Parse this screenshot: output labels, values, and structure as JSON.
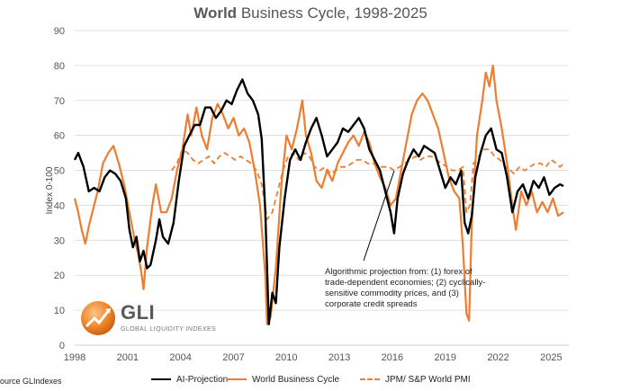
{
  "title_bold": "World",
  "title_rest": "Business Cycle, 1998-2025",
  "source_label": "ource GLIndexes",
  "annotation": "Algorithmic projection from: (1) forex of trade-dependent economies; (2) cyclically-sensitive commodity prices, and (3) corporate credit spreads",
  "logo": {
    "name": "GLI",
    "subtitle": "GLOBAL LIQUIDITY INDEXES"
  },
  "colors": {
    "ai": "#000000",
    "wbc": "#ed7d31",
    "pmi": "#ed7d31",
    "grid": "#d9d9d9"
  },
  "chart_data": {
    "type": "line",
    "ylabel": "Index 0-100",
    "ylim": [
      0,
      90
    ],
    "yticks": [
      0,
      10,
      20,
      30,
      40,
      50,
      60,
      70,
      80,
      90
    ],
    "xlim": [
      1998,
      2026
    ],
    "xticks": [
      1998,
      2001,
      2004,
      2007,
      2010,
      2013,
      2016,
      2019,
      2022,
      2025
    ],
    "grid": "horizontal",
    "legend_position": "bottom",
    "series": [
      {
        "name": "AI-Projection",
        "style": "solid-black",
        "points": [
          [
            1998.0,
            53
          ],
          [
            1998.2,
            55
          ],
          [
            1998.5,
            51
          ],
          [
            1998.8,
            44
          ],
          [
            1999.1,
            45
          ],
          [
            1999.4,
            44
          ],
          [
            1999.7,
            48
          ],
          [
            2000.0,
            50
          ],
          [
            2000.3,
            49
          ],
          [
            2000.6,
            47
          ],
          [
            2000.9,
            42
          ],
          [
            2001.1,
            33
          ],
          [
            2001.3,
            28
          ],
          [
            2001.5,
            31
          ],
          [
            2001.7,
            24
          ],
          [
            2001.9,
            27
          ],
          [
            2002.1,
            22
          ],
          [
            2002.3,
            23
          ],
          [
            2002.6,
            30
          ],
          [
            2002.8,
            36
          ],
          [
            2003.0,
            31
          ],
          [
            2003.3,
            29
          ],
          [
            2003.6,
            35
          ],
          [
            2003.9,
            47
          ],
          [
            2004.2,
            57
          ],
          [
            2004.5,
            60
          ],
          [
            2004.8,
            63
          ],
          [
            2005.1,
            63
          ],
          [
            2005.4,
            68
          ],
          [
            2005.7,
            68
          ],
          [
            2006.0,
            65
          ],
          [
            2006.3,
            67
          ],
          [
            2006.6,
            70
          ],
          [
            2006.9,
            69
          ],
          [
            2007.2,
            73
          ],
          [
            2007.5,
            76
          ],
          [
            2007.8,
            72
          ],
          [
            2008.1,
            70
          ],
          [
            2008.4,
            66
          ],
          [
            2008.6,
            59
          ],
          [
            2008.8,
            38
          ],
          [
            2009.0,
            6
          ],
          [
            2009.2,
            15
          ],
          [
            2009.4,
            12
          ],
          [
            2009.6,
            28
          ],
          [
            2009.9,
            42
          ],
          [
            2010.2,
            53
          ],
          [
            2010.5,
            56
          ],
          [
            2010.8,
            53
          ],
          [
            2011.1,
            58
          ],
          [
            2011.4,
            62
          ],
          [
            2011.7,
            65
          ],
          [
            2012.0,
            60
          ],
          [
            2012.3,
            54
          ],
          [
            2012.6,
            56
          ],
          [
            2012.9,
            58
          ],
          [
            2013.2,
            62
          ],
          [
            2013.5,
            61
          ],
          [
            2013.8,
            63
          ],
          [
            2014.1,
            65
          ],
          [
            2014.4,
            62
          ],
          [
            2014.7,
            56
          ],
          [
            2015.0,
            53
          ],
          [
            2015.3,
            50
          ],
          [
            2015.6,
            44
          ],
          [
            2015.9,
            38
          ],
          [
            2016.1,
            32
          ],
          [
            2016.3,
            42
          ],
          [
            2016.6,
            49
          ],
          [
            2016.9,
            53
          ],
          [
            2017.2,
            56
          ],
          [
            2017.5,
            54
          ],
          [
            2017.8,
            57
          ],
          [
            2018.1,
            56
          ],
          [
            2018.4,
            55
          ],
          [
            2018.7,
            50
          ],
          [
            2019.0,
            45
          ],
          [
            2019.3,
            48
          ],
          [
            2019.6,
            46
          ],
          [
            2019.9,
            50
          ],
          [
            2020.1,
            35
          ],
          [
            2020.3,
            32
          ],
          [
            2020.5,
            37
          ],
          [
            2020.7,
            48
          ],
          [
            2021.0,
            55
          ],
          [
            2021.3,
            60
          ],
          [
            2021.6,
            62
          ],
          [
            2021.9,
            56
          ],
          [
            2022.2,
            55
          ],
          [
            2022.5,
            48
          ],
          [
            2022.8,
            38
          ],
          [
            2023.1,
            44
          ],
          [
            2023.4,
            46
          ],
          [
            2023.7,
            42
          ],
          [
            2024.0,
            47
          ],
          [
            2024.3,
            45
          ],
          [
            2024.6,
            48
          ],
          [
            2024.9,
            43
          ],
          [
            2025.2,
            45
          ],
          [
            2025.5,
            46
          ],
          [
            2025.7,
            45.5
          ]
        ]
      },
      {
        "name": "World Business Cycle",
        "style": "solid-orange",
        "points": [
          [
            1998.0,
            42
          ],
          [
            1998.2,
            38
          ],
          [
            1998.4,
            33
          ],
          [
            1998.6,
            29
          ],
          [
            1998.8,
            34
          ],
          [
            1999.0,
            38
          ],
          [
            1999.3,
            44
          ],
          [
            1999.6,
            52
          ],
          [
            1999.9,
            55
          ],
          [
            2000.2,
            57
          ],
          [
            2000.5,
            52
          ],
          [
            2000.8,
            46
          ],
          [
            2001.1,
            38
          ],
          [
            2001.4,
            30
          ],
          [
            2001.6,
            26
          ],
          [
            2001.8,
            20
          ],
          [
            2001.9,
            16
          ],
          [
            2002.1,
            28
          ],
          [
            2002.4,
            40
          ],
          [
            2002.6,
            46
          ],
          [
            2002.9,
            38
          ],
          [
            2003.2,
            38
          ],
          [
            2003.5,
            42
          ],
          [
            2003.8,
            50
          ],
          [
            2004.1,
            56
          ],
          [
            2004.4,
            66
          ],
          [
            2004.6,
            60
          ],
          [
            2004.9,
            68
          ],
          [
            2005.2,
            60
          ],
          [
            2005.5,
            56
          ],
          [
            2005.8,
            65
          ],
          [
            2006.1,
            69
          ],
          [
            2006.4,
            66
          ],
          [
            2006.7,
            62
          ],
          [
            2007.0,
            65
          ],
          [
            2007.3,
            60
          ],
          [
            2007.6,
            62
          ],
          [
            2007.9,
            58
          ],
          [
            2008.2,
            50
          ],
          [
            2008.5,
            40
          ],
          [
            2008.8,
            20
          ],
          [
            2008.9,
            6
          ],
          [
            2009.1,
            8
          ],
          [
            2009.4,
            22
          ],
          [
            2009.7,
            45
          ],
          [
            2010.0,
            60
          ],
          [
            2010.3,
            56
          ],
          [
            2010.6,
            62
          ],
          [
            2010.9,
            70
          ],
          [
            2011.1,
            60
          ],
          [
            2011.4,
            55
          ],
          [
            2011.7,
            47
          ],
          [
            2012.0,
            45
          ],
          [
            2012.3,
            50
          ],
          [
            2012.6,
            47
          ],
          [
            2012.9,
            52
          ],
          [
            2013.2,
            55
          ],
          [
            2013.5,
            58
          ],
          [
            2013.8,
            60
          ],
          [
            2014.1,
            57
          ],
          [
            2014.4,
            61
          ],
          [
            2014.7,
            58
          ],
          [
            2015.0,
            52
          ],
          [
            2015.3,
            48
          ],
          [
            2015.6,
            45
          ],
          [
            2015.9,
            40
          ],
          [
            2016.2,
            42
          ],
          [
            2016.5,
            50
          ],
          [
            2016.8,
            58
          ],
          [
            2017.1,
            66
          ],
          [
            2017.4,
            70
          ],
          [
            2017.7,
            72
          ],
          [
            2018.0,
            70
          ],
          [
            2018.3,
            66
          ],
          [
            2018.6,
            62
          ],
          [
            2018.9,
            55
          ],
          [
            2019.2,
            48
          ],
          [
            2019.5,
            44
          ],
          [
            2019.8,
            42
          ],
          [
            2020.0,
            28
          ],
          [
            2020.2,
            9
          ],
          [
            2020.35,
            7
          ],
          [
            2020.5,
            35
          ],
          [
            2020.8,
            60
          ],
          [
            2021.1,
            70
          ],
          [
            2021.3,
            78
          ],
          [
            2021.5,
            74
          ],
          [
            2021.7,
            80
          ],
          [
            2021.9,
            70
          ],
          [
            2022.2,
            62
          ],
          [
            2022.5,
            52
          ],
          [
            2022.8,
            40
          ],
          [
            2023.0,
            33
          ],
          [
            2023.3,
            44
          ],
          [
            2023.6,
            40
          ],
          [
            2023.9,
            44
          ],
          [
            2024.2,
            38
          ],
          [
            2024.5,
            41
          ],
          [
            2024.8,
            38
          ],
          [
            2025.1,
            42
          ],
          [
            2025.4,
            37
          ],
          [
            2025.7,
            38
          ]
        ]
      },
      {
        "name": "JPM/ S&P World PMI",
        "style": "dashed-orange",
        "points": [
          [
            2003.5,
            50
          ],
          [
            2003.8,
            52
          ],
          [
            2004.1,
            56
          ],
          [
            2004.4,
            55
          ],
          [
            2004.7,
            53
          ],
          [
            2005.0,
            52
          ],
          [
            2005.3,
            53
          ],
          [
            2005.6,
            54
          ],
          [
            2005.9,
            52
          ],
          [
            2006.2,
            54
          ],
          [
            2006.5,
            55
          ],
          [
            2006.8,
            54
          ],
          [
            2007.1,
            53
          ],
          [
            2007.4,
            54
          ],
          [
            2007.7,
            53
          ],
          [
            2008.0,
            52
          ],
          [
            2008.3,
            50
          ],
          [
            2008.6,
            46
          ],
          [
            2008.9,
            36
          ],
          [
            2009.2,
            38
          ],
          [
            2009.5,
            44
          ],
          [
            2009.8,
            50
          ],
          [
            2010.1,
            54
          ],
          [
            2010.4,
            55
          ],
          [
            2010.7,
            53
          ],
          [
            2011.0,
            55
          ],
          [
            2011.3,
            54
          ],
          [
            2011.6,
            51
          ],
          [
            2011.9,
            50
          ],
          [
            2012.2,
            51
          ],
          [
            2012.5,
            49
          ],
          [
            2012.8,
            50
          ],
          [
            2013.1,
            51
          ],
          [
            2013.4,
            51
          ],
          [
            2013.7,
            52
          ],
          [
            2014.0,
            53
          ],
          [
            2014.3,
            53
          ],
          [
            2014.6,
            52
          ],
          [
            2014.9,
            52
          ],
          [
            2015.2,
            51
          ],
          [
            2015.5,
            51
          ],
          [
            2015.8,
            51
          ],
          [
            2016.1,
            50
          ],
          [
            2016.4,
            51
          ],
          [
            2016.7,
            52
          ],
          [
            2017.0,
            53
          ],
          [
            2017.3,
            54
          ],
          [
            2017.6,
            53
          ],
          [
            2017.9,
            54
          ],
          [
            2018.2,
            54
          ],
          [
            2018.5,
            53
          ],
          [
            2018.8,
            52
          ],
          [
            2019.1,
            51
          ],
          [
            2019.4,
            50
          ],
          [
            2019.7,
            50
          ],
          [
            2020.0,
            51
          ],
          [
            2020.2,
            38
          ],
          [
            2020.4,
            40
          ],
          [
            2020.6,
            52
          ],
          [
            2020.9,
            54
          ],
          [
            2021.2,
            56
          ],
          [
            2021.5,
            56
          ],
          [
            2021.8,
            54
          ],
          [
            2022.1,
            53
          ],
          [
            2022.4,
            51
          ],
          [
            2022.7,
            50
          ],
          [
            2022.9,
            49
          ],
          [
            2023.2,
            51
          ],
          [
            2023.5,
            50
          ],
          [
            2023.8,
            51
          ],
          [
            2024.1,
            52
          ],
          [
            2024.4,
            52
          ],
          [
            2024.7,
            51
          ],
          [
            2025.0,
            53
          ],
          [
            2025.3,
            52
          ],
          [
            2025.5,
            51
          ],
          [
            2025.7,
            52
          ]
        ]
      }
    ]
  }
}
